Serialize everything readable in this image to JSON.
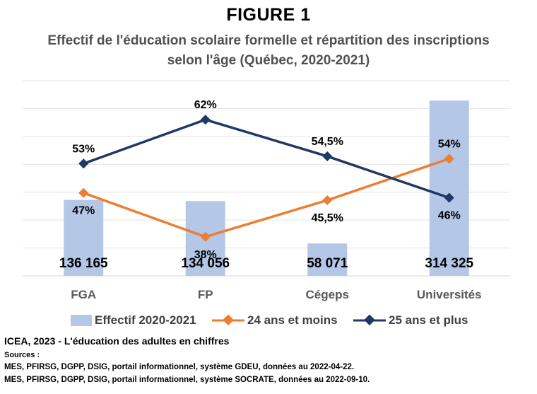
{
  "figure_label": "FIGURE 1",
  "chart_data": {
    "type": "bar",
    "title": "Effectif de l'éducation scolaire formelle et répartition des inscriptions selon l'âge (Québec, 2020-2021)",
    "categories": [
      "FGA",
      "FP",
      "Cégeps",
      "Universités"
    ],
    "bar_series": {
      "name": "Effectif 2020-2021",
      "values": [
        136165,
        134056,
        58071,
        314325
      ],
      "labels": [
        "136 165",
        "134 056",
        "58 071",
        "314 325"
      ],
      "color": "#b4c7e7"
    },
    "line_series": [
      {
        "name": "24 ans et moins",
        "values": [
          47,
          38,
          45.5,
          54
        ],
        "labels": [
          "47%",
          "38%",
          "45,5%",
          "54%"
        ],
        "color": "#ed7d31"
      },
      {
        "name": "25 ans et plus",
        "values": [
          53,
          62,
          54.5,
          46
        ],
        "labels": [
          "53%",
          "62%",
          "54,5%",
          "46%"
        ],
        "color": "#203864"
      }
    ],
    "grid": true,
    "legend_position": "bottom"
  },
  "footer": {
    "credit": "ICEA, 2023 - L'éducation des adultes en chiffres",
    "sources_label": "Sources :",
    "sources": [
      "MES, PFIRSG, DGPP, DSIG, portail informationnel, système GDEU, données au 2022-04-22.",
      "MES, PFIRSG, DGPP, DSIG, portail informationnel, système SOCRATE, données au 2022-09-10."
    ]
  }
}
